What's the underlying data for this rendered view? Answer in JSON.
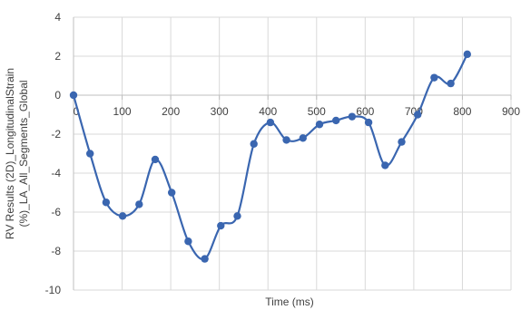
{
  "chart_data": {
    "type": "line",
    "xlabel": "Time (ms)",
    "ylabel_lines": [
      "RV Results (2D)_LongitudinalStrain",
      "(%)_LA_All_Segments_Global"
    ],
    "xlim": [
      0,
      900
    ],
    "ylim": [
      -10,
      4
    ],
    "xticks": [
      0,
      100,
      200,
      300,
      400,
      500,
      600,
      700,
      800,
      900
    ],
    "yticks": [
      4,
      2,
      0,
      -2,
      -4,
      -6,
      -8,
      -10
    ],
    "grid": true,
    "smooth": true,
    "colors": {
      "line": "#3a66b0",
      "marker": "#3a66b0"
    },
    "series": [
      {
        "x": [
          0,
          34,
          67,
          101,
          135,
          168,
          202,
          236,
          270,
          303,
          337,
          371,
          405,
          438,
          472,
          506,
          540,
          573,
          607,
          641,
          675,
          708,
          742,
          776,
          810
        ],
        "values": [
          0,
          -3.0,
          -5.5,
          -6.2,
          -5.6,
          -3.3,
          -5.0,
          -7.5,
          -8.4,
          -6.7,
          -6.2,
          -2.5,
          -1.4,
          -2.3,
          -2.2,
          -1.5,
          -1.3,
          -1.1,
          -1.4,
          -3.6,
          -2.4,
          -1.0,
          0.9,
          0.6,
          2.1
        ]
      }
    ]
  }
}
